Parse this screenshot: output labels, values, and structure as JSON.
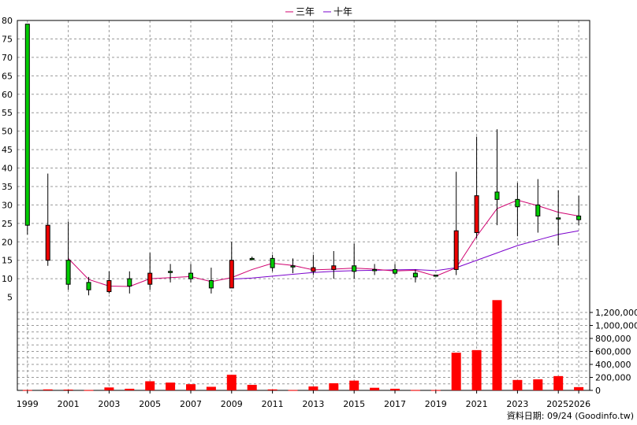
{
  "chart_data": {
    "type": "candlestick",
    "legend": [
      {
        "name": "三年",
        "color": "#d0006f"
      },
      {
        "name": "十年",
        "color": "#7a00cc"
      }
    ],
    "source_text": "資料日期: 09/24  (Goodinfo.tw)",
    "x_tick_labels": [
      "1999",
      "2001",
      "2003",
      "2005",
      "2007",
      "2009",
      "2011",
      "2013",
      "2015",
      "2017",
      "2019",
      "2021",
      "2023",
      "2025",
      "2026"
    ],
    "price_axis": {
      "ylim": [
        0,
        80
      ],
      "ticks": [
        "5",
        "10",
        "15",
        "20",
        "25",
        "30",
        "35",
        "40",
        "45",
        "50",
        "55",
        "60",
        "65",
        "70",
        "75",
        "80"
      ]
    },
    "volume_axis": {
      "ylim": [
        0,
        1400000
      ],
      "ticks": [
        "0",
        "200,000",
        "400,000",
        "600,000",
        "800,000",
        "1,000,000",
        "1,200,000"
      ]
    },
    "colors": {
      "up": "#00cc00",
      "down": "#ee0000",
      "volume": "#ff0000",
      "grid": "#999999"
    },
    "years": [
      "1999",
      "2000",
      "2001",
      "2002",
      "2003",
      "2004",
      "2005",
      "2006",
      "2007",
      "2008",
      "2009",
      "2010",
      "2011",
      "2012",
      "2013",
      "2014",
      "2015",
      "2016",
      "2017",
      "2018",
      "2019",
      "2020",
      "2021",
      "2022",
      "2023",
      "2024",
      "2025",
      "2026"
    ],
    "candles": [
      {
        "o": 24.5,
        "h": 79,
        "l": 22,
        "c": 79
      },
      {
        "o": 24.5,
        "h": 38.5,
        "l": 13.5,
        "c": 15
      },
      {
        "o": 8.5,
        "h": 25.5,
        "l": 7,
        "c": 15
      },
      {
        "o": 7,
        "h": 10.5,
        "l": 5.5,
        "c": 9
      },
      {
        "o": 9.5,
        "h": 12,
        "l": 6,
        "c": 6.5
      },
      {
        "o": 8,
        "h": 12,
        "l": 6,
        "c": 10
      },
      {
        "o": 11.5,
        "h": 17,
        "l": 7,
        "c": 8.5
      },
      {
        "o": 12,
        "h": 14,
        "l": 9,
        "c": 12
      },
      {
        "o": 10,
        "h": 14,
        "l": 9,
        "c": 11.5
      },
      {
        "o": 7.5,
        "h": 13,
        "l": 6,
        "c": 9.5
      },
      {
        "o": 15,
        "h": 20,
        "l": 7.5,
        "c": 7.5
      },
      {
        "o": 15.5,
        "h": 16,
        "l": 15,
        "c": 15.5
      },
      {
        "o": 13,
        "h": 16.5,
        "l": 12,
        "c": 15.5
      },
      {
        "o": 13.5,
        "h": 15.5,
        "l": 11.5,
        "c": 13.5
      },
      {
        "o": 13,
        "h": 16.5,
        "l": 11,
        "c": 12
      },
      {
        "o": 13.5,
        "h": 17.5,
        "l": 10,
        "c": 12.5
      },
      {
        "o": 12,
        "h": 19.5,
        "l": 10,
        "c": 13.5
      },
      {
        "o": 12.5,
        "h": 14,
        "l": 11,
        "c": 12.5
      },
      {
        "o": 11.5,
        "h": 14,
        "l": 11,
        "c": 12.5
      },
      {
        "o": 10.5,
        "h": 12.5,
        "l": 9,
        "c": 11.5
      },
      {
        "o": 11,
        "h": 11,
        "l": 11,
        "c": 11
      },
      {
        "o": 23,
        "h": 39,
        "l": 11,
        "c": 12.5
      },
      {
        "o": 32.5,
        "h": 48.5,
        "l": 21,
        "c": 22.5
      },
      {
        "o": 31.5,
        "h": 50.5,
        "l": 24.5,
        "c": 33.5
      },
      {
        "o": 29.5,
        "h": 36,
        "l": 21.5,
        "c": 31.5
      },
      {
        "o": 27,
        "h": 37,
        "l": 22.5,
        "c": 30
      },
      {
        "o": 26.5,
        "h": 34,
        "l": 19,
        "c": 26.5
      },
      {
        "o": 26,
        "h": 32.5,
        "l": 24.5,
        "c": 27
      }
    ],
    "ma3": [
      null,
      null,
      15.5,
      9.8,
      8,
      7.9,
      10,
      10.3,
      10.6,
      9.2,
      10.3,
      12.5,
      14.2,
      13.6,
      12.4,
      12.6,
      12.9,
      12.6,
      12.1,
      12.3,
      10.7,
      13,
      21.5,
      29,
      31.3,
      29.8,
      28,
      27
    ],
    "ma10": [
      null,
      null,
      null,
      null,
      null,
      null,
      null,
      null,
      null,
      null,
      9.9,
      10.2,
      10.7,
      11.2,
      11.7,
      12,
      12.2,
      12.3,
      12.4,
      12.5,
      12.2,
      13,
      15,
      17,
      19,
      20.5,
      22,
      23
    ],
    "volume": [
      5000,
      15000,
      12000,
      5000,
      45000,
      25000,
      140000,
      120000,
      95000,
      55000,
      240000,
      85000,
      15000,
      5000,
      60000,
      110000,
      150000,
      40000,
      25000,
      5000,
      5000,
      580000,
      620000,
      1390000,
      160000,
      170000,
      220000,
      50000
    ]
  }
}
